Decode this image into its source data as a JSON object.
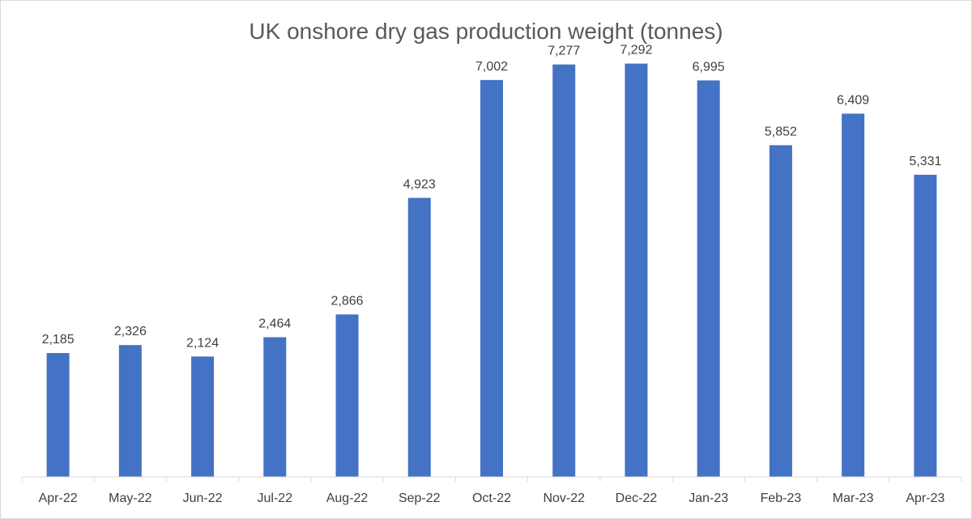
{
  "chart_data": {
    "type": "bar",
    "title": "UK onshore dry gas production weight (tonnes)",
    "categories": [
      "Apr-22",
      "May-22",
      "Jun-22",
      "Jul-22",
      "Aug-22",
      "Sep-22",
      "Oct-22",
      "Nov-22",
      "Dec-22",
      "Jan-23",
      "Feb-23",
      "Mar-23",
      "Apr-23"
    ],
    "values": [
      2185,
      2326,
      2124,
      2464,
      2866,
      4923,
      7002,
      7277,
      7292,
      6995,
      5852,
      6409,
      5331
    ],
    "data_labels": [
      "2,185",
      "2,326",
      "2,124",
      "2,464",
      "2,866",
      "4,923",
      "7,002",
      "7,277",
      "7,292",
      "6,995",
      "5,852",
      "6,409",
      "5,331"
    ],
    "xlabel": "",
    "ylabel": "",
    "ylim": [
      0,
      8000
    ],
    "grid": false,
    "legend": "none",
    "bar_color": "#4472C4",
    "axis_color": "#d9d9d9"
  }
}
